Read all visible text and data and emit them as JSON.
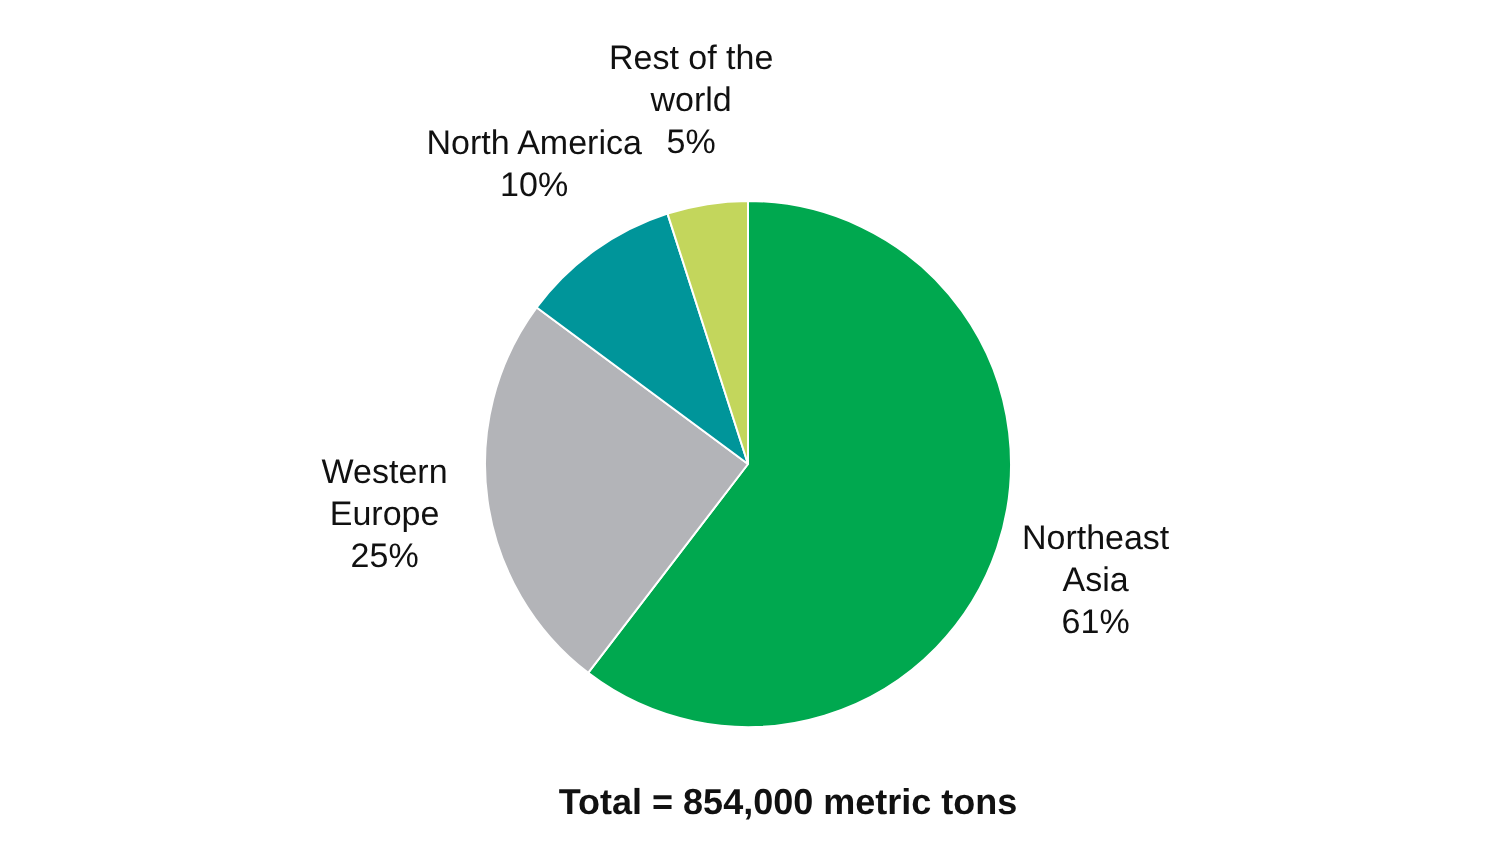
{
  "chart_data": {
    "type": "pie",
    "categories": [
      "Northeast Asia",
      "Western Europe",
      "North America",
      "Rest of the world"
    ],
    "values": [
      61,
      25,
      10,
      5
    ],
    "value_labels": [
      "61%",
      "25%",
      "10%",
      "5%"
    ],
    "colors": [
      "#00a84f",
      "#b3b4b8",
      "#00959a",
      "#c3d65c"
    ],
    "annotations": [
      "Total = 854,000 metric tons"
    ],
    "legend": false
  }
}
